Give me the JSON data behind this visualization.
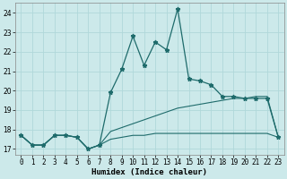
{
  "x_values": [
    0,
    1,
    2,
    3,
    4,
    5,
    6,
    7,
    8,
    9,
    10,
    11,
    12,
    13,
    14,
    15,
    16,
    17,
    18,
    19,
    20,
    21,
    22,
    23
  ],
  "line_main_y": [
    17.7,
    17.2,
    17.2,
    17.7,
    17.7,
    17.6,
    17.0,
    17.2,
    19.9,
    21.1,
    22.8,
    21.3,
    22.5,
    22.1,
    24.2,
    20.6,
    20.5,
    20.3,
    19.7,
    19.7,
    19.6,
    19.6,
    19.6,
    17.6
  ],
  "line_low_y": [
    17.7,
    17.2,
    17.2,
    17.7,
    17.7,
    17.6,
    17.0,
    17.2,
    17.5,
    17.6,
    17.7,
    17.7,
    17.8,
    17.8,
    17.8,
    17.8,
    17.8,
    17.8,
    17.8,
    17.8,
    17.8,
    17.8,
    17.8,
    17.6
  ],
  "line_high_y": [
    17.7,
    17.2,
    17.2,
    17.7,
    17.7,
    17.6,
    17.0,
    17.2,
    17.9,
    18.1,
    18.3,
    18.5,
    18.7,
    18.9,
    19.1,
    19.2,
    19.3,
    19.4,
    19.5,
    19.6,
    19.6,
    19.7,
    19.7,
    17.6
  ],
  "bg_color": "#cce9ea",
  "grid_color": "#b0d8da",
  "line_color": "#1e6b6b",
  "xlabel": "Humidex (Indice chaleur)",
  "ylim": [
    16.7,
    24.5
  ],
  "xlim": [
    -0.5,
    23.5
  ],
  "yticks": [
    17,
    18,
    19,
    20,
    21,
    22,
    23,
    24
  ],
  "xticks": [
    0,
    1,
    2,
    3,
    4,
    5,
    6,
    7,
    8,
    9,
    10,
    11,
    12,
    13,
    14,
    15,
    16,
    17,
    18,
    19,
    20,
    21,
    22,
    23
  ],
  "xlabel_fontsize": 6.5,
  "tick_fontsize": 5.5
}
